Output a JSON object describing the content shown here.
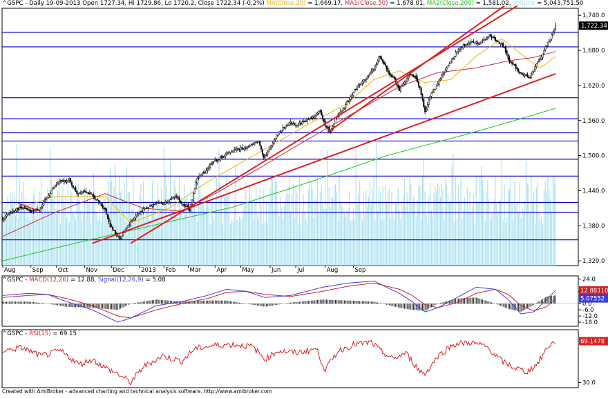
{
  "header": {
    "price": {
      "symbol": "^GSPC",
      "text": " - Daily 19-09-2013 Open 1727.34, Hi 1729.86, Lo 1720.2, Close 1722.34 (-0.2%) ",
      "ma20_label": "MA(Close,20)",
      "ma20_value": " = 1,669.17, ",
      "ma50_label": "MA1(Close,50)",
      "ma50_value": " = 1,678.01, ",
      "ma200_label": "MA2(Close,200)",
      "ma200_value": " = 1,581.02, ",
      "volume_label": "Volume",
      "volume_value": " = 5,043,751.50"
    },
    "macd": {
      "symbol": "^GSPC",
      "sep": " - ",
      "macd_label": "MACD(12,26)",
      "macd_value": " = 12.88, ",
      "signal_label": "Signal(12,26,9)",
      "signal_value": " = 5.08"
    },
    "rsi": {
      "symbol": "^GSPC",
      "sep": " - ",
      "rsi_label": "RSI(15)",
      "rsi_value": " = 69.15"
    }
  },
  "footer": "Created with AmiBroker - advanced charting and technical analysis software. http://www.amibroker.com",
  "colors": {
    "candle": "#000000",
    "ma20": "#f0b400",
    "ma50": "#c8283c",
    "ma200": "#14c814",
    "volume": "#a8e0f0",
    "hline": "#0000c8",
    "trend": "#e01e1e",
    "macd": "#3c3cdc",
    "signal": "#d21e1e",
    "histogram": "#000000",
    "rsi": "#dc1e1e"
  },
  "chart_data": [
    {
      "type": "candlestick",
      "panel": "price",
      "x_labels": [
        "Aug",
        "Sep",
        "Oct",
        "Nov",
        "Dec",
        "2013",
        "Feb",
        "Mar",
        "Apr",
        "May",
        "Jun",
        "Jul",
        "Aug",
        "Sep"
      ],
      "y_ticks": [
        "1,740.0",
        "1,680.0",
        "1,620.0",
        "1,560.0",
        "1,500.0",
        "1,440.0",
        "1,380.0",
        "1,320.0"
      ],
      "ylim": [
        1312,
        1752
      ],
      "last_close_label": "1,722.34",
      "close_anchors": [
        [
          0,
          1393
        ],
        [
          8,
          1405
        ],
        [
          15,
          1412
        ],
        [
          22,
          1403
        ],
        [
          30,
          1412
        ],
        [
          38,
          1440
        ],
        [
          44,
          1455
        ],
        [
          52,
          1458
        ],
        [
          58,
          1436
        ],
        [
          64,
          1440
        ],
        [
          70,
          1432
        ],
        [
          76,
          1418
        ],
        [
          80,
          1408
        ],
        [
          84,
          1380
        ],
        [
          88,
          1367
        ],
        [
          92,
          1358
        ],
        [
          96,
          1375
        ],
        [
          102,
          1392
        ],
        [
          108,
          1405
        ],
        [
          114,
          1412
        ],
        [
          120,
          1420
        ],
        [
          126,
          1418
        ],
        [
          132,
          1425
        ],
        [
          136,
          1431
        ],
        [
          140,
          1416
        ],
        [
          144,
          1415
        ],
        [
          146,
          1404
        ],
        [
          148,
          1426
        ],
        [
          152,
          1462
        ],
        [
          158,
          1472
        ],
        [
          164,
          1490
        ],
        [
          170,
          1495
        ],
        [
          176,
          1505
        ],
        [
          182,
          1511
        ],
        [
          188,
          1512
        ],
        [
          194,
          1518
        ],
        [
          200,
          1524
        ],
        [
          204,
          1498
        ],
        [
          208,
          1508
        ],
        [
          212,
          1528
        ],
        [
          218,
          1545
        ],
        [
          224,
          1556
        ],
        [
          230,
          1553
        ],
        [
          236,
          1559
        ],
        [
          242,
          1565
        ],
        [
          248,
          1575
        ],
        [
          252,
          1552
        ],
        [
          256,
          1540
        ],
        [
          260,
          1563
        ],
        [
          266,
          1580
        ],
        [
          272,
          1601
        ],
        [
          278,
          1621
        ],
        [
          284,
          1632
        ],
        [
          290,
          1648
        ],
        [
          294,
          1669
        ],
        [
          298,
          1658
        ],
        [
          302,
          1640
        ],
        [
          306,
          1633
        ],
        [
          310,
          1612
        ],
        [
          314,
          1625
        ],
        [
          318,
          1638
        ],
        [
          322,
          1636
        ],
        [
          326,
          1616
        ],
        [
          330,
          1573
        ],
        [
          334,
          1603
        ],
        [
          338,
          1615
        ],
        [
          342,
          1633
        ],
        [
          348,
          1653
        ],
        [
          354,
          1675
        ],
        [
          360,
          1689
        ],
        [
          366,
          1694
        ],
        [
          372,
          1693
        ],
        [
          376,
          1697
        ],
        [
          380,
          1706
        ],
        [
          386,
          1697
        ],
        [
          392,
          1685
        ],
        [
          396,
          1660
        ],
        [
          400,
          1654
        ],
        [
          404,
          1642
        ],
        [
          408,
          1638
        ],
        [
          412,
          1634
        ],
        [
          416,
          1653
        ],
        [
          420,
          1665
        ],
        [
          424,
          1685
        ],
        [
          428,
          1700
        ],
        [
          432,
          1722
        ]
      ],
      "series": [
        {
          "name": "MA(Close,20)",
          "anchors": [
            [
              0,
              1400
            ],
            [
              40,
              1430
            ],
            [
              80,
              1430
            ],
            [
              100,
              1385
            ],
            [
              130,
              1410
            ],
            [
              160,
              1455
            ],
            [
              200,
              1505
            ],
            [
              240,
              1555
            ],
            [
              270,
              1590
            ],
            [
              290,
              1630
            ],
            [
              310,
              1645
            ],
            [
              330,
              1625
            ],
            [
              350,
              1630
            ],
            [
              370,
              1670
            ],
            [
              390,
              1700
            ],
            [
              410,
              1665
            ],
            [
              420,
              1650
            ],
            [
              432,
              1669
            ]
          ]
        },
        {
          "name": "MA1(Close,50)",
          "anchors": [
            [
              0,
              1362
            ],
            [
              40,
              1402
            ],
            [
              80,
              1435
            ],
            [
              110,
              1410
            ],
            [
              140,
              1405
            ],
            [
              170,
              1440
            ],
            [
              200,
              1478
            ],
            [
              240,
              1530
            ],
            [
              280,
              1580
            ],
            [
              310,
              1618
            ],
            [
              340,
              1642
            ],
            [
              370,
              1650
            ],
            [
              395,
              1662
            ],
            [
              415,
              1668
            ],
            [
              432,
              1678
            ]
          ]
        },
        {
          "name": "MA2(Close,200)",
          "anchors": [
            [
              0,
              1320
            ],
            [
              60,
              1352
            ],
            [
              120,
              1382
            ],
            [
              180,
              1412
            ],
            [
              240,
              1455
            ],
            [
              300,
              1500
            ],
            [
              360,
              1535
            ],
            [
              400,
              1560
            ],
            [
              432,
              1581
            ]
          ]
        }
      ],
      "volume": {
        "name": "Volume",
        "bars": 433
      },
      "horizontal_levels": [
        1711,
        1686,
        1599,
        1563,
        1539,
        1525,
        1494,
        1465,
        1420,
        1403,
        1356
      ],
      "trendlines": [
        [
          [
            70,
            1350
          ],
          [
            432,
            1640
          ]
        ],
        [
          [
            100,
            1350
          ],
          [
            402,
            1756
          ]
        ],
        [
          [
            254,
            1540
          ],
          [
            392,
            1756
          ]
        ],
        [
          [
            12,
            1419
          ],
          [
            30,
            1404
          ]
        ]
      ]
    },
    {
      "type": "line",
      "panel": "macd",
      "y_ticks": [
        "24.0",
        "12.0",
        "0.0",
        "-6.0",
        "-12.0",
        "-18.0"
      ],
      "ylim": [
        -22,
        27
      ],
      "value_labels": [
        "12.88110",
        "5.07552"
      ],
      "series": [
        {
          "name": "MACD(12,26)",
          "anchors": [
            [
              0,
              8
            ],
            [
              20,
              10
            ],
            [
              35,
              9
            ],
            [
              50,
              2
            ],
            [
              70,
              -6
            ],
            [
              90,
              -18
            ],
            [
              100,
              -14
            ],
            [
              120,
              -2
            ],
            [
              140,
              2
            ],
            [
              160,
              8
            ],
            [
              175,
              14
            ],
            [
              190,
              12
            ],
            [
              205,
              6
            ],
            [
              225,
              8
            ],
            [
              250,
              16
            ],
            [
              270,
              20
            ],
            [
              290,
              22
            ],
            [
              310,
              10
            ],
            [
              320,
              2
            ],
            [
              330,
              -8
            ],
            [
              340,
              -4
            ],
            [
              355,
              6
            ],
            [
              370,
              16
            ],
            [
              385,
              14
            ],
            [
              395,
              4
            ],
            [
              405,
              -10
            ],
            [
              415,
              -8
            ],
            [
              425,
              4
            ],
            [
              432,
              13
            ]
          ]
        },
        {
          "name": "Signal(12,26,9)",
          "anchors": [
            [
              0,
              6
            ],
            [
              20,
              8
            ],
            [
              35,
              9
            ],
            [
              50,
              5
            ],
            [
              70,
              -2
            ],
            [
              90,
              -12
            ],
            [
              100,
              -14
            ],
            [
              120,
              -6
            ],
            [
              140,
              0
            ],
            [
              160,
              5
            ],
            [
              175,
              11
            ],
            [
              190,
              12
            ],
            [
              205,
              9
            ],
            [
              225,
              7
            ],
            [
              250,
              12
            ],
            [
              270,
              17
            ],
            [
              290,
              20
            ],
            [
              310,
              14
            ],
            [
              320,
              8
            ],
            [
              330,
              -1
            ],
            [
              340,
              -4
            ],
            [
              355,
              1
            ],
            [
              370,
              10
            ],
            [
              385,
              14
            ],
            [
              395,
              9
            ],
            [
              405,
              -2
            ],
            [
              415,
              -7
            ],
            [
              425,
              -3
            ],
            [
              432,
              5
            ]
          ]
        }
      ]
    },
    {
      "type": "line",
      "panel": "rsi",
      "y_ticks": [
        "30.0"
      ],
      "ylim": [
        25,
        80
      ],
      "value_labels": [
        "69.1478"
      ],
      "series": [
        {
          "name": "RSI(15)",
          "anchors": [
            [
              0,
              60
            ],
            [
              15,
              63
            ],
            [
              30,
              55
            ],
            [
              45,
              60
            ],
            [
              60,
              47
            ],
            [
              70,
              52
            ],
            [
              80,
              44
            ],
            [
              90,
              38
            ],
            [
              100,
              30
            ],
            [
              110,
              45
            ],
            [
              125,
              55
            ],
            [
              140,
              50
            ],
            [
              150,
              62
            ],
            [
              165,
              65
            ],
            [
              180,
              66
            ],
            [
              195,
              64
            ],
            [
              205,
              52
            ],
            [
              215,
              60
            ],
            [
              230,
              58
            ],
            [
              245,
              62
            ],
            [
              252,
              42
            ],
            [
              262,
              60
            ],
            [
              275,
              66
            ],
            [
              288,
              68
            ],
            [
              295,
              60
            ],
            [
              305,
              52
            ],
            [
              315,
              58
            ],
            [
              325,
              42
            ],
            [
              330,
              38
            ],
            [
              340,
              55
            ],
            [
              352,
              66
            ],
            [
              365,
              68
            ],
            [
              378,
              64
            ],
            [
              390,
              50
            ],
            [
              400,
              44
            ],
            [
              410,
              40
            ],
            [
              418,
              48
            ],
            [
              426,
              64
            ],
            [
              432,
              69
            ]
          ]
        }
      ]
    }
  ]
}
